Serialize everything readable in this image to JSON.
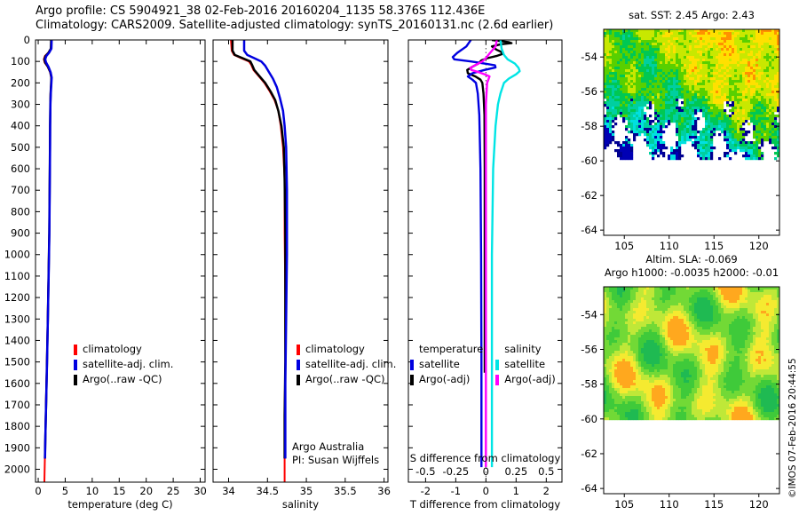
{
  "header": {
    "line1": "Argo profile: CS 5904921_38 02-Feb-2016 20160204_1135 58.376S 112.436E",
    "line2": "Climatology: CARS2009. Satellite-adjusted climatology: synTS_20160131.nc (2.6d earlier)"
  },
  "annotations": {
    "program": "Argo Australia",
    "pi": "PI: Susan Wijffels",
    "credit": "©IMOS 07-Feb-2016 20:44:55"
  },
  "legend_profiles": {
    "items": [
      {
        "label": "climatology",
        "color": "#ff0000"
      },
      {
        "label": "satellite-adj. clim.",
        "color": "#0000e0"
      },
      {
        "label": "Argo(..raw -QC)",
        "color": "#000000"
      }
    ]
  },
  "legend_diff": {
    "col1_header": "temperature",
    "col2_header": "salinity",
    "col1": [
      {
        "label": "satellite",
        "color": "#0000e0"
      },
      {
        "label": "Argo(-adj)",
        "color": "#000000"
      }
    ],
    "col2": [
      {
        "label": "satellite",
        "color": "#00e5e5"
      },
      {
        "label": "Argo(-adj)",
        "color": "#ff00ff"
      }
    ]
  },
  "maps": {
    "sst": {
      "title": "sat. SST: 2.45 Argo: 2.43"
    },
    "sla": {
      "title_line1": "Altim. SLA: -0.069",
      "title_line2": "Argo h1000: -0.0035 h2000: -0.01"
    }
  },
  "chart_data": [
    {
      "type": "line",
      "xlabel": "temperature (deg C)",
      "x_ticks": [
        0,
        5,
        10,
        15,
        20,
        25,
        30
      ],
      "xlim": [
        -0.5,
        30.9
      ],
      "depth_ticks": [
        0,
        100,
        200,
        300,
        400,
        500,
        600,
        700,
        800,
        900,
        1000,
        1100,
        1200,
        1300,
        1400,
        1500,
        1600,
        1700,
        1800,
        1900,
        2000
      ],
      "depth_lim": [
        0,
        2060
      ],
      "show_depth_labels": true,
      "series": [
        {
          "name": "climatology",
          "color": "#ff0000",
          "width": 2,
          "points": [
            [
              0,
              2.45
            ],
            [
              40,
              2.4
            ],
            [
              60,
              1.85
            ],
            [
              75,
              1.25
            ],
            [
              90,
              1.05
            ],
            [
              105,
              1.2
            ],
            [
              125,
              1.75
            ],
            [
              150,
              2.2
            ],
            [
              175,
              2.4
            ],
            [
              200,
              2.38
            ],
            [
              250,
              2.28
            ],
            [
              300,
              2.24
            ],
            [
              400,
              2.19
            ],
            [
              500,
              2.17
            ],
            [
              700,
              2.11
            ],
            [
              900,
              2.04
            ],
            [
              1100,
              1.9
            ],
            [
              1300,
              1.76
            ],
            [
              1500,
              1.6
            ],
            [
              1700,
              1.43
            ],
            [
              1900,
              1.28
            ],
            [
              2080,
              1.12
            ]
          ]
        },
        {
          "name": "Argo(..raw -QC)",
          "color": "#000000",
          "width": 2.5,
          "points": [
            [
              0,
              2.4
            ],
            [
              40,
              2.35
            ],
            [
              60,
              1.9
            ],
            [
              75,
              1.35
            ],
            [
              90,
              1.15
            ],
            [
              105,
              1.3
            ],
            [
              125,
              1.8
            ],
            [
              150,
              2.25
            ],
            [
              175,
              2.45
            ],
            [
              200,
              2.4
            ],
            [
              250,
              2.3
            ],
            [
              300,
              2.25
            ],
            [
              400,
              2.2
            ],
            [
              500,
              2.18
            ],
            [
              700,
              2.12
            ],
            [
              900,
              2.05
            ],
            [
              1100,
              1.92
            ],
            [
              1300,
              1.78
            ],
            [
              1500,
              1.62
            ],
            [
              1700,
              1.45
            ],
            [
              1850,
              1.32
            ],
            [
              1950,
              1.25
            ]
          ]
        },
        {
          "name": "satellite-adj. clim.",
          "color": "#0000e0",
          "width": 2.5,
          "points": [
            [
              0,
              2.5
            ],
            [
              40,
              2.45
            ],
            [
              60,
              2.0
            ],
            [
              75,
              1.5
            ],
            [
              90,
              1.3
            ],
            [
              105,
              1.45
            ],
            [
              125,
              1.9
            ],
            [
              150,
              2.3
            ],
            [
              175,
              2.5
            ],
            [
              200,
              2.45
            ],
            [
              250,
              2.32
            ],
            [
              300,
              2.26
            ],
            [
              400,
              2.21
            ],
            [
              500,
              2.19
            ],
            [
              700,
              2.13
            ],
            [
              900,
              2.06
            ],
            [
              1100,
              1.93
            ],
            [
              1300,
              1.79
            ],
            [
              1500,
              1.63
            ],
            [
              1700,
              1.46
            ],
            [
              1850,
              1.33
            ],
            [
              1950,
              1.26
            ]
          ]
        }
      ]
    },
    {
      "type": "line",
      "xlabel": "salinity",
      "x_ticks": [
        34,
        34.5,
        35,
        35.5,
        36
      ],
      "xlim": [
        33.8,
        36.05
      ],
      "depth_lim": [
        0,
        2060
      ],
      "show_depth_labels": false,
      "series": [
        {
          "name": "climatology",
          "color": "#ff0000",
          "width": 2,
          "points": [
            [
              0,
              34.03
            ],
            [
              50,
              34.04
            ],
            [
              70,
              34.07
            ],
            [
              85,
              34.16
            ],
            [
              100,
              34.26
            ],
            [
              115,
              34.29
            ],
            [
              140,
              34.32
            ],
            [
              170,
              34.39
            ],
            [
              200,
              34.46
            ],
            [
              240,
              34.53
            ],
            [
              280,
              34.59
            ],
            [
              330,
              34.64
            ],
            [
              400,
              34.67
            ],
            [
              500,
              34.7
            ],
            [
              650,
              34.72
            ],
            [
              900,
              34.72
            ],
            [
              1200,
              34.73
            ],
            [
              1500,
              34.73
            ],
            [
              1750,
              34.72
            ],
            [
              2080,
              34.72
            ]
          ]
        },
        {
          "name": "Argo(..raw -QC)",
          "color": "#000000",
          "width": 2.5,
          "points": [
            [
              0,
              34.05
            ],
            [
              50,
              34.05
            ],
            [
              70,
              34.08
            ],
            [
              85,
              34.18
            ],
            [
              100,
              34.28
            ],
            [
              115,
              34.3
            ],
            [
              140,
              34.33
            ],
            [
              170,
              34.4
            ],
            [
              200,
              34.47
            ],
            [
              240,
              34.54
            ],
            [
              280,
              34.6
            ],
            [
              330,
              34.64
            ],
            [
              400,
              34.68
            ],
            [
              500,
              34.71
            ],
            [
              650,
              34.72
            ],
            [
              900,
              34.73
            ],
            [
              1200,
              34.73
            ],
            [
              1500,
              34.73
            ],
            [
              1750,
              34.72
            ],
            [
              1950,
              34.72
            ]
          ]
        },
        {
          "name": "satellite-adj. clim.",
          "color": "#0000e0",
          "width": 2.5,
          "points": [
            [
              0,
              34.2
            ],
            [
              50,
              34.2
            ],
            [
              70,
              34.24
            ],
            [
              85,
              34.33
            ],
            [
              100,
              34.42
            ],
            [
              120,
              34.47
            ],
            [
              150,
              34.52
            ],
            [
              180,
              34.57
            ],
            [
              220,
              34.62
            ],
            [
              270,
              34.66
            ],
            [
              330,
              34.7
            ],
            [
              400,
              34.72
            ],
            [
              500,
              34.74
            ],
            [
              700,
              34.75
            ],
            [
              1000,
              34.75
            ],
            [
              1300,
              34.74
            ],
            [
              1600,
              34.73
            ],
            [
              1950,
              34.73
            ]
          ]
        }
      ]
    },
    {
      "type": "line",
      "xlabel": "T difference from climatology",
      "x_ticks": [
        -2,
        -1,
        0,
        1,
        2
      ],
      "xlim": [
        -2.57,
        2.52
      ],
      "depth_lim": [
        0,
        2060
      ],
      "show_depth_labels": false,
      "zero_line": true,
      "inner_axis": {
        "label": "S difference from climatology",
        "ticks": [
          -0.5,
          -0.25,
          0,
          0.25,
          0.5
        ],
        "scale": 4
      },
      "series": [
        {
          "name": "Argo(-adj) temperature",
          "color": "#000000",
          "width": 2.4,
          "points": [
            [
              0,
              0.2
            ],
            [
              10,
              0.75
            ],
            [
              15,
              0.85
            ],
            [
              20,
              0.5
            ],
            [
              30,
              0.2
            ],
            [
              45,
              0.35
            ],
            [
              55,
              0.5
            ],
            [
              65,
              0.55
            ],
            [
              75,
              0.35
            ],
            [
              85,
              0.05
            ],
            [
              95,
              -0.15
            ],
            [
              110,
              -0.25
            ],
            [
              125,
              -0.45
            ],
            [
              140,
              -0.62
            ],
            [
              155,
              -0.6
            ],
            [
              170,
              -0.35
            ],
            [
              185,
              -0.18
            ],
            [
              200,
              -0.12
            ],
            [
              250,
              -0.08
            ],
            [
              350,
              -0.05
            ],
            [
              600,
              -0.04
            ],
            [
              1000,
              -0.04
            ],
            [
              1300,
              -0.04
            ],
            [
              1550,
              -0.04
            ]
          ]
        },
        {
          "name": "satellite temperature",
          "color": "#0000e0",
          "width": 2.4,
          "points": [
            [
              0,
              -0.5
            ],
            [
              30,
              -0.65
            ],
            [
              60,
              -0.95
            ],
            [
              80,
              -1.1
            ],
            [
              90,
              -1.05
            ],
            [
              100,
              -0.5
            ],
            [
              110,
              -0.05
            ],
            [
              118,
              0.3
            ],
            [
              128,
              0.32
            ],
            [
              140,
              -0.05
            ],
            [
              155,
              -0.45
            ],
            [
              170,
              -0.6
            ],
            [
              185,
              -0.45
            ],
            [
              200,
              -0.33
            ],
            [
              250,
              -0.27
            ],
            [
              350,
              -0.22
            ],
            [
              600,
              -0.18
            ],
            [
              1000,
              -0.16
            ],
            [
              1500,
              -0.15
            ],
            [
              1990,
              -0.15
            ]
          ]
        },
        {
          "name": "satellite salinity",
          "color": "#00e5e5",
          "width": 2.4,
          "x_scale": 4,
          "points": [
            [
              0,
              0.12
            ],
            [
              40,
              0.13
            ],
            [
              70,
              0.15
            ],
            [
              90,
              0.18
            ],
            [
              110,
              0.24
            ],
            [
              130,
              0.27
            ],
            [
              145,
              0.28
            ],
            [
              160,
              0.25
            ],
            [
              180,
              0.19
            ],
            [
              200,
              0.15
            ],
            [
              250,
              0.12
            ],
            [
              300,
              0.1
            ],
            [
              400,
              0.08
            ],
            [
              600,
              0.06
            ],
            [
              1000,
              0.05
            ],
            [
              1500,
              0.05
            ],
            [
              1990,
              0.05
            ]
          ]
        },
        {
          "name": "Argo(-adj) salinity",
          "color": "#ff00ff",
          "width": 2.4,
          "x_scale": 4,
          "points": [
            [
              0,
              0.09
            ],
            [
              30,
              0.08
            ],
            [
              50,
              0.05
            ],
            [
              70,
              0.02
            ],
            [
              85,
              0
            ],
            [
              100,
              -0.03
            ],
            [
              115,
              -0.08
            ],
            [
              130,
              -0.13
            ],
            [
              140,
              -0.12
            ],
            [
              150,
              -0.06
            ],
            [
              160,
              -0.01
            ],
            [
              170,
              0.03
            ],
            [
              185,
              0.02
            ],
            [
              200,
              0.01
            ],
            [
              300,
              0
            ],
            [
              600,
              0
            ],
            [
              1000,
              0
            ],
            [
              1500,
              0
            ],
            [
              1990,
              0
            ]
          ]
        }
      ]
    },
    {
      "type": "heatmap",
      "title": "sat. SST: 2.45 Argo: 2.43",
      "x_ticks": [
        105,
        110,
        115,
        120
      ],
      "y_ticks": [
        -54,
        -56,
        -58,
        -60,
        -62,
        -64
      ],
      "xlim": [
        102.7,
        122.3
      ],
      "ylim": [
        -64.3,
        -52.4
      ],
      "note": "satellite SST field; colored data north of -60, white (no data) south of -60, ragged white/dark-blue gaps near -57 to -60 in west"
    },
    {
      "type": "heatmap",
      "title": "Altim. SLA: -0.069 / Argo h1000: -0.0035 h2000: -0.01",
      "x_ticks": [
        105,
        110,
        115,
        120
      ],
      "y_ticks": [
        -54,
        -56,
        -58,
        -60,
        -62,
        -64
      ],
      "xlim": [
        102.7,
        122.3
      ],
      "ylim": [
        -64.3,
        -52.4
      ],
      "note": "altimetric sea level anomaly field; smooth green/yellow/orange blobs north of -60, white south of -60"
    }
  ]
}
